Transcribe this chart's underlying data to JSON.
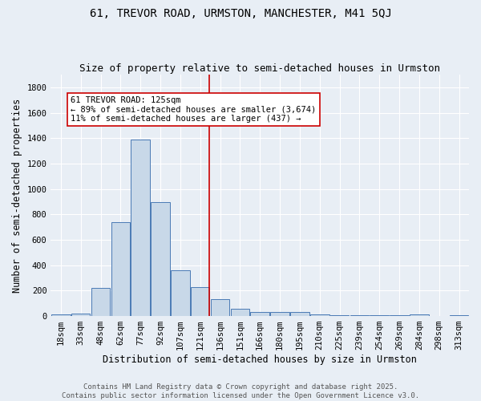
{
  "title": "61, TREVOR ROAD, URMSTON, MANCHESTER, M41 5QJ",
  "subtitle": "Size of property relative to semi-detached houses in Urmston",
  "xlabel": "Distribution of semi-detached houses by size in Urmston",
  "ylabel": "Number of semi-detached properties",
  "bin_labels": [
    "18sqm",
    "33sqm",
    "48sqm",
    "62sqm",
    "77sqm",
    "92sqm",
    "107sqm",
    "121sqm",
    "136sqm",
    "151sqm",
    "166sqm",
    "180sqm",
    "195sqm",
    "210sqm",
    "225sqm",
    "239sqm",
    "254sqm",
    "269sqm",
    "284sqm",
    "298sqm",
    "313sqm"
  ],
  "bar_values": [
    10,
    20,
    220,
    740,
    1390,
    900,
    360,
    225,
    130,
    60,
    30,
    30,
    35,
    10,
    5,
    5,
    5,
    5,
    10,
    0,
    5
  ],
  "bar_color": "#c8d8e8",
  "bar_edge_color": "#4a7ab5",
  "red_line_bin_index": 7,
  "annotation_text_line1": "61 TREVOR ROAD: 125sqm",
  "annotation_text_line2": "← 89% of semi-detached houses are smaller (3,674)",
  "annotation_text_line3": "11% of semi-detached houses are larger (437) →",
  "ylim": [
    0,
    1900
  ],
  "yticks": [
    0,
    200,
    400,
    600,
    800,
    1000,
    1200,
    1400,
    1600,
    1800
  ],
  "footer_line1": "Contains HM Land Registry data © Crown copyright and database right 2025.",
  "footer_line2": "Contains public sector information licensed under the Open Government Licence v3.0.",
  "bg_color": "#e8eef5",
  "plot_bg_color": "#e8eef5",
  "grid_color": "#ffffff",
  "title_fontsize": 10,
  "subtitle_fontsize": 9,
  "axis_label_fontsize": 8.5,
  "tick_fontsize": 7.5,
  "annotation_fontsize": 7.5,
  "footer_fontsize": 6.5
}
